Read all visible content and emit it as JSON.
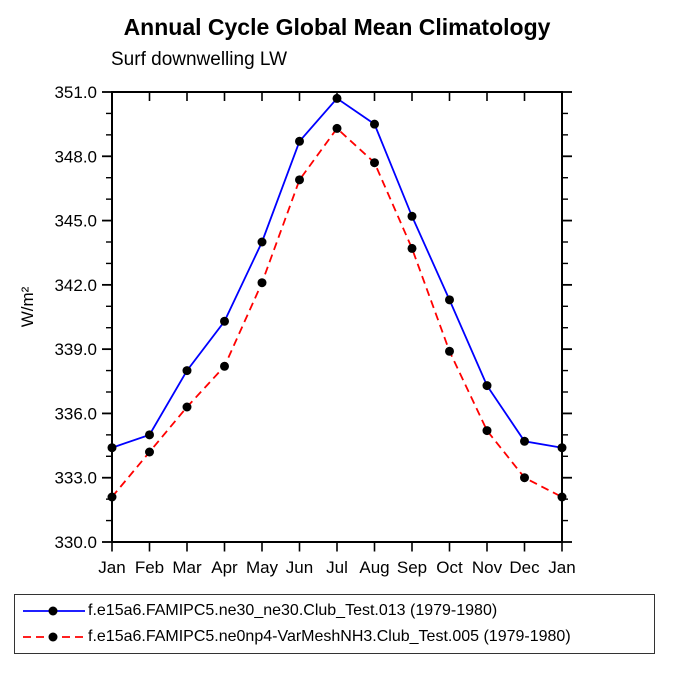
{
  "chart_data": {
    "type": "line",
    "title": "Annual Cycle Global Mean Climatology",
    "subtitle": "Surf downwelling LW",
    "ylabel": "W/m²",
    "xlabel": "",
    "categories": [
      "Jan",
      "Feb",
      "Mar",
      "Apr",
      "May",
      "Jun",
      "Jul",
      "Aug",
      "Sep",
      "Oct",
      "Nov",
      "Dec",
      "Jan"
    ],
    "ylim": [
      330.0,
      351.0
    ],
    "ytick_major_interval": 3.0,
    "ytick_minor_interval": 1.0,
    "ytick_labels": [
      "330.0",
      "333.0",
      "336.0",
      "339.0",
      "342.0",
      "345.0",
      "348.0",
      "351.0"
    ],
    "grid": false,
    "legend_position": "bottom-box",
    "axis_color": "#000000",
    "marker_color": "#000000",
    "series": [
      {
        "name": "f.e15a6.FAMIPC5.ne30_ne30.Club_Test.013",
        "label": "f.e15a6.FAMIPC5.ne30_ne30.Club_Test.013 (1979-1980)",
        "color": "#0000ff",
        "line_style": "solid",
        "marker": "filled-circle",
        "values": [
          334.4,
          335.0,
          338.0,
          340.3,
          344.0,
          348.7,
          350.7,
          349.5,
          345.2,
          341.3,
          337.3,
          334.7,
          334.4
        ]
      },
      {
        "name": "f.e15a6.FAMIPC5.ne0np4-VarMeshNH3.Club_Test.005",
        "label": "f.e15a6.FAMIPC5.ne0np4-VarMeshNH3.Club_Test.005 (1979-1980)",
        "color": "#ff0000",
        "line_style": "dashed",
        "marker": "filled-circle",
        "values": [
          332.1,
          334.2,
          336.3,
          338.2,
          342.1,
          346.9,
          349.3,
          347.7,
          343.7,
          338.9,
          335.2,
          333.0,
          332.1
        ]
      }
    ]
  }
}
